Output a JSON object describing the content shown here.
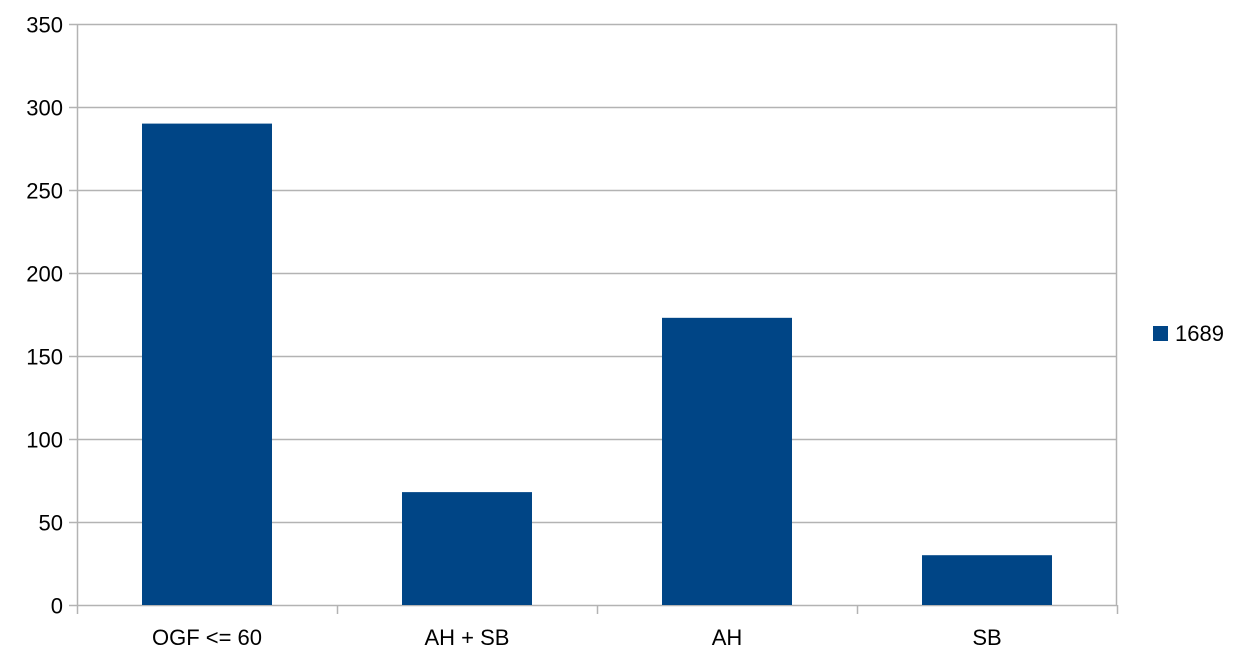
{
  "chart_data": {
    "type": "bar",
    "title": "",
    "xlabel": "",
    "ylabel": "",
    "categories": [
      "OGF <= 60",
      "AH + SB",
      "AH",
      "SB"
    ],
    "series": [
      {
        "name": "1689",
        "values": [
          290,
          68,
          173,
          30
        ]
      }
    ],
    "ylim": [
      0,
      350
    ],
    "yticks": [
      0,
      50,
      100,
      150,
      200,
      250,
      300,
      350
    ],
    "grid": true,
    "legend_position": "right",
    "colors": {
      "bar": "#004586",
      "grid": "#b3b3b3",
      "axis": "#b3b3b3"
    }
  }
}
